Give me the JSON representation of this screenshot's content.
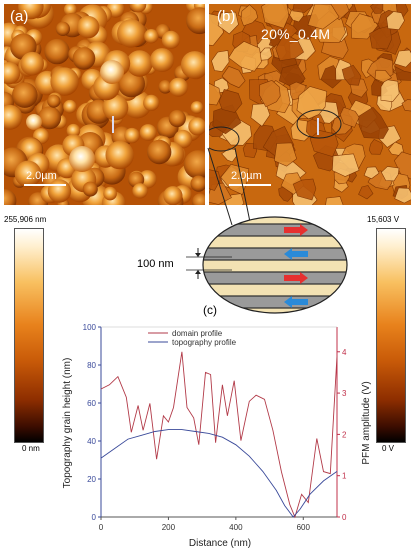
{
  "panel_a": {
    "label": "(a)",
    "scale_bar": "2.0µm"
  },
  "panel_b": {
    "label": "(b)",
    "title": "20%_0.4M",
    "scale_bar": "2.0µm"
  },
  "colorbar_left": {
    "max_label": "255,906 nm",
    "min_label": "0 nm"
  },
  "colorbar_right": {
    "max_label": "15,603 V",
    "min_label": "0 V"
  },
  "domain_inset": {
    "thickness_label": "100 nm"
  },
  "panel_c": {
    "label": "(c)"
  },
  "colors": {
    "domain_profile": "#b23a48",
    "topography_profile": "#3a4a9a",
    "axis_left": "#3a4a9a",
    "axis_right": "#c0304a"
  },
  "chart_data": {
    "type": "line",
    "xlabel": "Distance (nm)",
    "ylabel_left": "Topography grain height (nm)",
    "ylabel_right": "PFM amplitude (V)",
    "xlim": [
      0,
      700
    ],
    "ylim_left": [
      0,
      100
    ],
    "ylim_right": [
      0,
      4.6
    ],
    "x_ticks": [
      0,
      200,
      400,
      600
    ],
    "y_left_ticks": [
      0,
      20,
      40,
      60,
      80,
      100
    ],
    "y_right_ticks": [
      0,
      1,
      2,
      3,
      4
    ],
    "legend": {
      "position": "top-center",
      "entries": [
        "domain profile",
        "topography profile"
      ]
    },
    "series": [
      {
        "name": "domain profile",
        "axis": "right",
        "x": [
          0,
          25,
          50,
          75,
          90,
          110,
          125,
          145,
          165,
          185,
          200,
          215,
          240,
          255,
          275,
          290,
          310,
          325,
          340,
          360,
          375,
          395,
          415,
          440,
          460,
          485,
          510,
          535,
          560,
          575,
          595,
          615,
          640,
          660,
          680,
          700
        ],
        "y": [
          3.1,
          3.2,
          3.4,
          2.9,
          2.05,
          2.7,
          2.1,
          2.75,
          1.4,
          2.45,
          2.3,
          2.65,
          4.0,
          2.65,
          2.4,
          1.75,
          3.5,
          3.45,
          1.8,
          3.2,
          2.45,
          3.3,
          1.85,
          2.8,
          2.95,
          2.85,
          2.1,
          1.1,
          0.3,
          0.0,
          0.55,
          0.35,
          1.9,
          1.1,
          1.05,
          3.9
        ]
      },
      {
        "name": "topography profile",
        "axis": "left",
        "x": [
          0,
          40,
          80,
          120,
          160,
          200,
          240,
          280,
          320,
          360,
          400,
          440,
          480,
          520,
          545,
          570,
          590,
          620,
          660,
          700
        ],
        "y": [
          31,
          36,
          41,
          43,
          45,
          46,
          46,
          45,
          44,
          42,
          38,
          32,
          24,
          14,
          6,
          0,
          4,
          12,
          19,
          24
        ]
      }
    ]
  }
}
